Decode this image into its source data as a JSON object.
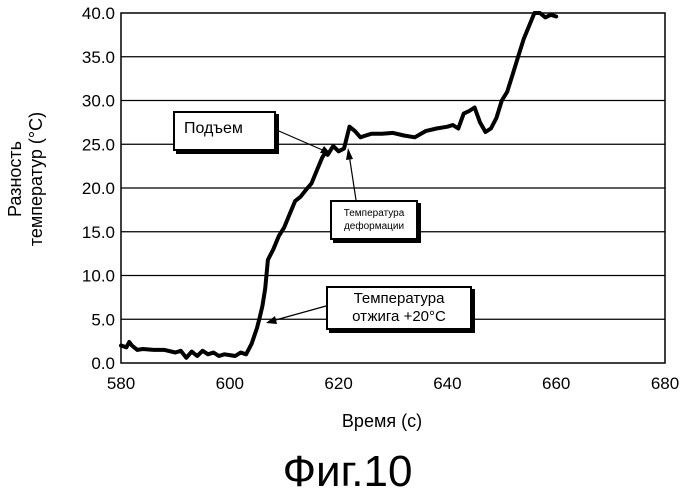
{
  "chart_data": {
    "type": "line",
    "xlabel": "Время (с)",
    "ylabel": "Разность\nтемператур (°C)",
    "xlim": [
      580,
      680
    ],
    "ylim": [
      0,
      40
    ],
    "x_ticks": [
      "580",
      "600",
      "620",
      "640",
      "660",
      "680"
    ],
    "y_ticks": [
      "0.0",
      "5.0",
      "10.0",
      "15.0",
      "20.0",
      "25.0",
      "30.0",
      "35.0",
      "40.0"
    ],
    "grid": "horizontal",
    "series": [
      {
        "color": "#000000",
        "x": [
          580,
          581,
          581.5,
          582,
          583,
          584,
          586,
          588,
          590,
          591,
          592,
          593,
          594,
          595,
          596,
          597,
          598,
          599,
          600,
          601,
          602,
          603,
          604,
          605,
          605.5,
          606,
          606.5,
          607,
          608,
          609,
          610,
          611,
          612,
          613,
          614,
          615,
          616,
          617,
          617.5,
          618,
          619,
          620,
          621,
          622,
          623,
          624,
          625,
          626,
          628,
          630,
          632,
          634,
          636,
          638,
          640,
          641,
          642,
          643,
          644,
          645,
          646,
          647,
          648,
          649,
          650,
          651,
          652,
          653,
          654,
          655,
          656,
          657,
          658,
          659,
          660
        ],
        "y": [
          2.0,
          1.8,
          2.4,
          2.0,
          1.5,
          1.6,
          1.5,
          1.5,
          1.2,
          1.4,
          0.6,
          1.3,
          0.8,
          1.4,
          1.0,
          1.2,
          0.8,
          1.0,
          0.9,
          0.8,
          1.2,
          1.0,
          2.2,
          4.0,
          5.2,
          6.5,
          8.5,
          11.8,
          13.0,
          14.5,
          15.5,
          17.0,
          18.5,
          19.0,
          19.8,
          20.5,
          22.0,
          23.5,
          24.0,
          23.8,
          24.8,
          24.2,
          24.5,
          27.0,
          26.5,
          25.8,
          26.0,
          26.2,
          26.2,
          26.3,
          26.0,
          25.8,
          26.5,
          26.8,
          27.0,
          27.2,
          26.8,
          28.5,
          28.8,
          29.2,
          27.5,
          26.4,
          26.8,
          28.0,
          30.0,
          31.0,
          33.0,
          35.0,
          37.0,
          38.5,
          40.0,
          40.0,
          39.5,
          39.8,
          39.6
        ]
      }
    ],
    "annotations": [
      {
        "text": "Подъем",
        "x": 620,
        "y": 24.8
      },
      {
        "text": "Температура\nдеформации",
        "x": 622,
        "y": 24.5
      },
      {
        "text": "Температура\nотжига +20°C",
        "x": 606,
        "y": 4.5
      }
    ]
  },
  "figure": {
    "caption": "Фиг.10"
  }
}
